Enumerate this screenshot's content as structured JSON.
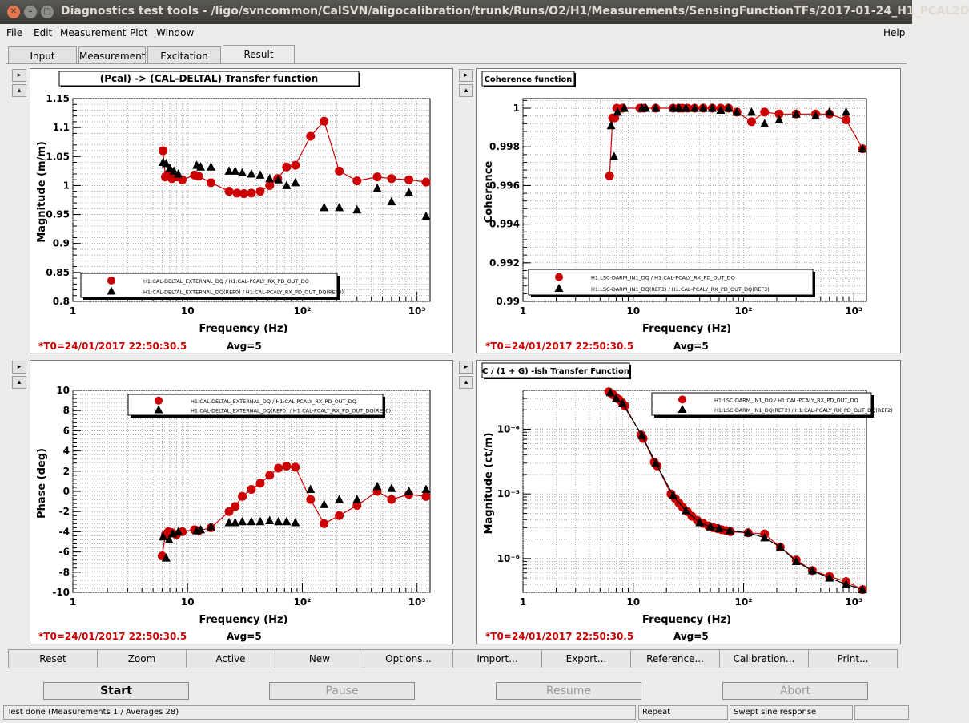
{
  "window": {
    "title": "Diagnostics test tools - /ligo/svncommon/CalSVN/aligocalibration/trunk/Runs/O2/H1/Measurements/SensingFunctionTFs/2017-01-24_H1_PCAL2D",
    "close_glyph": "✕",
    "min_glyph": "–",
    "max_glyph": "□"
  },
  "menu": {
    "file": "File",
    "edit": "Edit",
    "measurement": "Measurement",
    "plot": "Plot",
    "window": "Window",
    "help": "Help"
  },
  "tabs": [
    "Input",
    "Measurement",
    "Excitation",
    "Result"
  ],
  "side_buttons": {
    "expand": "▸",
    "collapse": "▴"
  },
  "plots": {
    "tf_mag": {
      "title": "(Pcal) -> (CAL-DELTAL) Transfer function",
      "ylabel": "Magnitude (m/m)",
      "xlabel": "Frequency (Hz)",
      "t0": "*T0=24/01/2017 22:50:30.5",
      "avg": "Avg=5",
      "legend": [
        "H1:CAL-DELTAL_EXTERNAL_DQ / H1:CAL-PCALY_RX_PD_OUT_DQ",
        "H1:CAL-DELTAL_EXTERNAL_DQ(REF0) / H1:CAL-PCALY_RX_PD_OUT_DQ(REF0)"
      ]
    },
    "coherence": {
      "title": "Coherence function",
      "ylabel": "Coherence",
      "xlabel": "Frequency (Hz)",
      "t0": "*T0=24/01/2017 22:50:30.5",
      "avg": "Avg=5",
      "legend": [
        "H1:LSC-DARM_IN1_DQ / H1:CAL-PCALY_RX_PD_OUT_DQ",
        "H1:LSC-DARM_IN1_DQ(REF3) / H1:CAL-PCALY_RX_PD_OUT_DQ(REF3)"
      ]
    },
    "tf_phase": {
      "title": "",
      "ylabel": "Phase (deg)",
      "xlabel": "Frequency (Hz)",
      "t0": "*T0=24/01/2017 22:50:30.5",
      "avg": "Avg=5",
      "legend": [
        "H1:CAL-DELTAL_EXTERNAL_DQ / H1:CAL-PCALY_RX_PD_OUT_DQ",
        "H1:CAL-DELTAL_EXTERNAL_DQ(REF0) / H1:CAL-PCALY_RX_PD_OUT_DQ(REF0)"
      ]
    },
    "cg": {
      "title": "C / (1 + G) -ish Transfer Function",
      "ylabel": "Magnitude (ct/m)",
      "xlabel": "Frequency (Hz)",
      "t0": "*T0=24/01/2017 22:50:30.5",
      "avg": "Avg=5",
      "legend": [
        "H1:LSC-DARM_IN1_DQ / H1:CAL-PCALY_RX_PD_OUT_DQ",
        "H1:LSC-DARM_IN1_DQ(REF2) / H1:CAL-PCALY_RX_PD_OUT_DQ(REF2)"
      ]
    }
  },
  "chart_data": [
    {
      "id": "tf_mag",
      "type": "scatter",
      "xscale": "log",
      "xlim": [
        1,
        1300
      ],
      "ylim": [
        0.8,
        1.15
      ],
      "yticks": [
        "0.8",
        "0.85",
        "0.9",
        "0.95",
        "1",
        "1.05",
        "1.1",
        "1.15"
      ],
      "yticks_values": [
        0.8,
        0.85,
        0.9,
        0.95,
        1.0,
        1.05,
        1.1,
        1.15
      ],
      "xticks": [
        "1",
        "10",
        "10²",
        "10³"
      ],
      "xticks_values": [
        1,
        10,
        100,
        1000
      ],
      "grid": true,
      "legend_position": "bottom-left",
      "series": [
        {
          "marker": "circle",
          "color": "#cc0000",
          "line": true,
          "x": [
            6.1,
            6.4,
            6.8,
            7.3,
            8.0,
            9.0,
            11.5,
            12.5,
            16,
            23,
            27,
            31,
            36,
            43,
            52,
            61,
            73,
            87,
            118,
            155,
            210,
            300,
            450,
            600,
            850,
            1200
          ],
          "y": [
            1.06,
            1.015,
            1.02,
            1.012,
            1.015,
            1.01,
            1.018,
            1.016,
            1.005,
            0.99,
            0.987,
            0.986,
            0.987,
            0.99,
            1.0,
            1.012,
            1.032,
            1.035,
            1.085,
            1.111,
            1.025,
            1.008,
            1.015,
            1.012,
            1.01,
            1.006
          ]
        },
        {
          "marker": "triangle",
          "color": "#000000",
          "line": false,
          "x": [
            6.1,
            6.5,
            7.0,
            7.6,
            8.3,
            12,
            13,
            16,
            23,
            26,
            30,
            36,
            43,
            52,
            62,
            73,
            87,
            155,
            210,
            300,
            450,
            600,
            850,
            1200
          ],
          "y": [
            1.04,
            1.038,
            1.03,
            1.025,
            1.02,
            1.035,
            1.032,
            1.032,
            1.025,
            1.025,
            1.022,
            1.02,
            1.018,
            1.012,
            1.01,
            1.0,
            1.005,
            0.962,
            0.962,
            0.958,
            0.995,
            0.972,
            0.988,
            0.947
          ]
        }
      ]
    },
    {
      "id": "coherence",
      "type": "scatter",
      "xscale": "log",
      "xlim": [
        1,
        1300
      ],
      "ylim": [
        0.99,
        1.0005
      ],
      "yticks": [
        "0.99",
        "0.992",
        "0.994",
        "0.996",
        "0.998",
        "1"
      ],
      "yticks_values": [
        0.99,
        0.992,
        0.994,
        0.996,
        0.998,
        1.0
      ],
      "xticks": [
        "1",
        "10",
        "10²",
        "10³"
      ],
      "xticks_values": [
        1,
        10,
        100,
        1000
      ],
      "grid": true,
      "legend_position": "bottom-right",
      "series": [
        {
          "marker": "circle",
          "color": "#cc0000",
          "line": true,
          "x": [
            6.1,
            6.5,
            6.8,
            7.1,
            8.0,
            11.5,
            12.5,
            16,
            23,
            26,
            28,
            31,
            36,
            43,
            52,
            62,
            73,
            87,
            118,
            155,
            210,
            300,
            450,
            600,
            850,
            1200
          ],
          "y": [
            0.9965,
            0.9995,
            0.9995,
            1.0,
            1.0,
            1.0,
            1.0,
            1.0,
            1.0,
            1.0,
            1.0,
            1.0,
            1.0,
            1.0,
            1.0,
            1.0,
            1.0,
            0.9998,
            0.9993,
            0.9998,
            0.9997,
            0.9997,
            0.9997,
            0.9997,
            0.9994,
            0.9979
          ]
        },
        {
          "marker": "triangle",
          "color": "#000000",
          "line": false,
          "x": [
            6.3,
            6.7,
            7.2,
            8.3,
            12,
            13,
            16,
            23,
            26,
            30,
            36,
            43,
            52,
            62,
            73,
            87,
            118,
            155,
            210,
            300,
            450,
            600,
            850,
            1200
          ],
          "y": [
            0.9991,
            0.9975,
            0.9998,
            1.0,
            1.0,
            1.0,
            1.0,
            1.0,
            1.0,
            1.0,
            1.0,
            1.0,
            1.0,
            0.9999,
            1.0,
            0.9998,
            0.9998,
            0.9992,
            0.9994,
            0.9997,
            0.9996,
            0.9998,
            0.9998,
            0.9979
          ]
        }
      ]
    },
    {
      "id": "tf_phase",
      "type": "scatter",
      "xscale": "log",
      "xlim": [
        1,
        1300
      ],
      "ylim": [
        -10,
        10
      ],
      "yticks": [
        "-10",
        "-8",
        "-6",
        "-4",
        "-2",
        "0",
        "2",
        "4",
        "6",
        "8",
        "10"
      ],
      "yticks_values": [
        -10,
        -8,
        -6,
        -4,
        -2,
        0,
        2,
        4,
        6,
        8,
        10
      ],
      "xticks": [
        "1",
        "10",
        "10²",
        "10³"
      ],
      "xticks_values": [
        1,
        10,
        100,
        1000
      ],
      "grid": true,
      "legend_position": "top-right",
      "series": [
        {
          "marker": "circle",
          "color": "#cc0000",
          "line": true,
          "x": [
            6.0,
            6.4,
            6.8,
            7.3,
            8.0,
            9.0,
            11.5,
            12.5,
            16,
            23,
            26,
            30,
            36,
            43,
            52,
            62,
            73,
            87,
            118,
            155,
            210,
            300,
            450,
            600,
            850,
            1200
          ],
          "y": [
            -6.4,
            -4.3,
            -4.0,
            -4.1,
            -4.3,
            -4.0,
            -3.8,
            -3.9,
            -3.6,
            -2.0,
            -1.5,
            -0.5,
            0.2,
            0.8,
            1.6,
            2.3,
            2.5,
            2.4,
            -0.8,
            -3.2,
            -2.4,
            -1.4,
            0.0,
            -0.8,
            -0.3,
            -0.5
          ]
        },
        {
          "marker": "triangle",
          "color": "#000000",
          "line": false,
          "x": [
            6.1,
            6.5,
            6.9,
            7.4,
            8.3,
            12,
            13,
            16,
            23,
            26,
            30,
            36,
            43,
            52,
            62,
            73,
            87,
            118,
            155,
            210,
            300,
            450,
            600,
            850,
            1200
          ],
          "y": [
            -4.5,
            -6.6,
            -4.8,
            -4.2,
            -4.0,
            -3.9,
            -3.8,
            -3.5,
            -3.1,
            -3.1,
            -3.0,
            -3.0,
            -3.0,
            -2.9,
            -3.0,
            -3.0,
            -3.1,
            0.2,
            -1.3,
            -0.8,
            -0.8,
            0.5,
            0.3,
            0.0,
            0.2
          ]
        }
      ]
    },
    {
      "id": "cg",
      "type": "scatter",
      "xscale": "log",
      "yscale": "log",
      "xlim": [
        1,
        1300
      ],
      "ylim": [
        3e-07,
        0.0004
      ],
      "yticks": [
        "10⁻⁶",
        "10⁻⁵",
        "10⁻⁴"
      ],
      "yticks_values": [
        1e-06,
        1e-05,
        0.0001
      ],
      "xticks": [
        "1",
        "10",
        "10²",
        "10³"
      ],
      "xticks_values": [
        1,
        10,
        100,
        1000
      ],
      "grid": true,
      "legend_position": "top-right",
      "series": [
        {
          "marker": "circle",
          "color": "#cc0000",
          "line": true,
          "x": [
            6.0,
            6.3,
            6.6,
            7.0,
            7.4,
            7.9,
            8.4,
            11.8,
            12.3,
            15.5,
            16.5,
            22,
            24,
            26,
            28,
            31,
            34,
            38,
            43,
            48,
            53,
            58,
            63,
            69,
            76,
            110,
            155,
            215,
            300,
            420,
            600,
            850,
            1200
          ],
          "y": [
            0.00038,
            0.00036,
            0.00034,
            0.00031,
            0.00029,
            0.00026,
            0.00023,
            8.2e-05,
            7.2e-05,
            3.1e-05,
            2.7e-05,
            1e-05,
            8.5e-06,
            7.2e-06,
            6.2e-06,
            5.3e-06,
            4.5e-06,
            3.9e-06,
            3.5e-06,
            3.2e-06,
            3e-06,
            2.9e-06,
            2.8e-06,
            2.7e-06,
            2.6e-06,
            2.5e-06,
            2.4e-06,
            1.5e-06,
            9.5e-07,
            6.5e-07,
            5.3e-07,
            4.4e-07,
            3.3e-07
          ]
        },
        {
          "marker": "triangle",
          "color": "#000000",
          "line": true,
          "x": [
            6.2,
            7.0,
            8.0,
            12,
            16,
            23,
            30,
            40,
            50,
            60,
            75,
            110,
            155,
            215,
            300,
            420,
            600,
            850,
            1200
          ],
          "y": [
            0.00037,
            0.0003,
            0.00025,
            8e-05,
            3e-05,
            9.5e-06,
            5.5e-06,
            3.6e-06,
            3.1e-06,
            2.9e-06,
            2.7e-06,
            2.5e-06,
            2.1e-06,
            1.5e-06,
            9e-07,
            6.5e-07,
            5e-07,
            4e-07,
            3.3e-07
          ]
        }
      ]
    }
  ],
  "toolbar": [
    "Reset",
    "Zoom",
    "Active",
    "New",
    "Options...",
    "Import...",
    "Export...",
    "Reference...",
    "Calibration...",
    "Print..."
  ],
  "controls": {
    "start": "Start",
    "pause": "Pause",
    "resume": "Resume",
    "abort": "Abort"
  },
  "status": {
    "message": "Test done (Measurements 1 / Averages 28)",
    "mode": "Repeat",
    "type": "Swept sine response"
  }
}
